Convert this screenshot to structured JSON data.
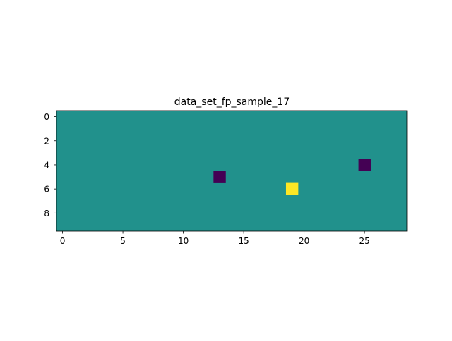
{
  "chart_data": {
    "type": "heatmap",
    "title": "data_set_fp_sample_17",
    "xlabel": "",
    "ylabel": "",
    "rows": 10,
    "cols": 29,
    "background_value": 0,
    "colormap": "viridis",
    "vmin": -1,
    "vmax": 1,
    "cells": [
      {
        "row": 4,
        "col": 25,
        "value": -1
      },
      {
        "row": 5,
        "col": 13,
        "value": -1
      },
      {
        "row": 6,
        "col": 19,
        "value": 1
      }
    ],
    "xticks": [
      0,
      5,
      10,
      15,
      20,
      25
    ],
    "yticks": [
      0,
      2,
      4,
      6,
      8
    ],
    "colors": {
      "low": "#440154",
      "mid": "#21918c",
      "high": "#fde725",
      "axis": "#000000",
      "text": "#000000"
    }
  }
}
